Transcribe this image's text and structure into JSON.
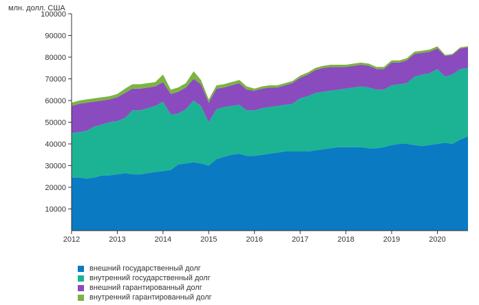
{
  "chart_data": {
    "type": "area",
    "stacked": true,
    "ylabel": "млн. долл. США",
    "ylim": [
      0,
      100000
    ],
    "yticks": [
      10000,
      20000,
      30000,
      40000,
      50000,
      60000,
      70000,
      80000,
      90000,
      100000
    ],
    "xlim": [
      2012.0,
      2020.67
    ],
    "xticks": [
      "2012",
      "2013",
      "2014",
      "2015",
      "2016",
      "2017",
      "2018",
      "2019",
      "2020"
    ],
    "grid": false,
    "legend_position": "bottom-left",
    "x": [
      2012.0,
      2012.17,
      2012.33,
      2012.5,
      2012.67,
      2012.83,
      2013.0,
      2013.17,
      2013.33,
      2013.5,
      2013.67,
      2013.83,
      2014.0,
      2014.17,
      2014.33,
      2014.5,
      2014.67,
      2014.83,
      2015.0,
      2015.17,
      2015.33,
      2015.5,
      2015.67,
      2015.83,
      2016.0,
      2016.17,
      2016.33,
      2016.5,
      2016.67,
      2016.83,
      2017.0,
      2017.17,
      2017.33,
      2017.5,
      2017.67,
      2017.83,
      2018.0,
      2018.17,
      2018.33,
      2018.5,
      2018.67,
      2018.83,
      2019.0,
      2019.17,
      2019.33,
      2019.5,
      2019.67,
      2019.83,
      2020.0,
      2020.17,
      2020.33,
      2020.5,
      2020.67
    ],
    "series": [
      {
        "name": "внешний государственный долг",
        "color": "#0a7bc2",
        "values": [
          24500,
          24500,
          24000,
          24500,
          25500,
          25500,
          26000,
          26500,
          26000,
          26000,
          26500,
          27000,
          27500,
          28000,
          30500,
          31000,
          31500,
          31000,
          30000,
          33000,
          34000,
          35000,
          35500,
          34500,
          34500,
          35000,
          35500,
          36000,
          36500,
          36500,
          36500,
          36500,
          37000,
          37500,
          38000,
          38500,
          38500,
          38500,
          38500,
          38000,
          38000,
          38500,
          39500,
          40000,
          40000,
          39500,
          39000,
          39500,
          40000,
          40500,
          40000,
          42000,
          43500
        ]
      },
      {
        "name": "внутренний государственный долг",
        "color": "#1bb394",
        "values": [
          20500,
          21000,
          22000,
          23500,
          23500,
          24500,
          24500,
          25500,
          29500,
          29500,
          30000,
          30500,
          32000,
          25500,
          23500,
          25000,
          28500,
          26500,
          20000,
          23000,
          23000,
          22500,
          22500,
          21000,
          21000,
          21500,
          21500,
          21500,
          21500,
          22000,
          24500,
          25500,
          26500,
          26500,
          26500,
          26500,
          27000,
          27500,
          28000,
          28000,
          27000,
          26500,
          27500,
          27500,
          28000,
          31500,
          33000,
          33000,
          34500,
          30500,
          32000,
          32500,
          31500
        ]
      },
      {
        "name": "внешний гарантированный долг",
        "color": "#8a4bbf",
        "values": [
          12500,
          13000,
          13000,
          11500,
          11000,
          10500,
          11000,
          11500,
          10000,
          10000,
          9500,
          9000,
          9000,
          9500,
          10000,
          10000,
          10000,
          10000,
          9000,
          9500,
          9000,
          9500,
          10000,
          9500,
          9000,
          9000,
          9000,
          8500,
          9000,
          9500,
          9500,
          10000,
          10500,
          11000,
          11000,
          10500,
          10000,
          10000,
          10000,
          10000,
          9500,
          9500,
          10500,
          10000,
          10500,
          10500,
          10000,
          10000,
          9500,
          9500,
          9000,
          9500,
          9500
        ]
      },
      {
        "name": "внутренний гарантированный долг",
        "color": "#7cb342",
        "values": [
          1500,
          1500,
          1500,
          1500,
          1500,
          1500,
          1500,
          2000,
          2000,
          2000,
          2000,
          2000,
          3500,
          2000,
          2000,
          2000,
          3500,
          2000,
          1500,
          1500,
          1500,
          1500,
          1500,
          1500,
          1000,
          1000,
          1000,
          1000,
          1000,
          1000,
          1000,
          1000,
          1000,
          1000,
          1000,
          1000,
          1000,
          1000,
          1000,
          1000,
          1000,
          1000,
          1000,
          1000,
          1000,
          1000,
          1000,
          1000,
          1000,
          500,
          500,
          500,
          500
        ]
      }
    ]
  }
}
